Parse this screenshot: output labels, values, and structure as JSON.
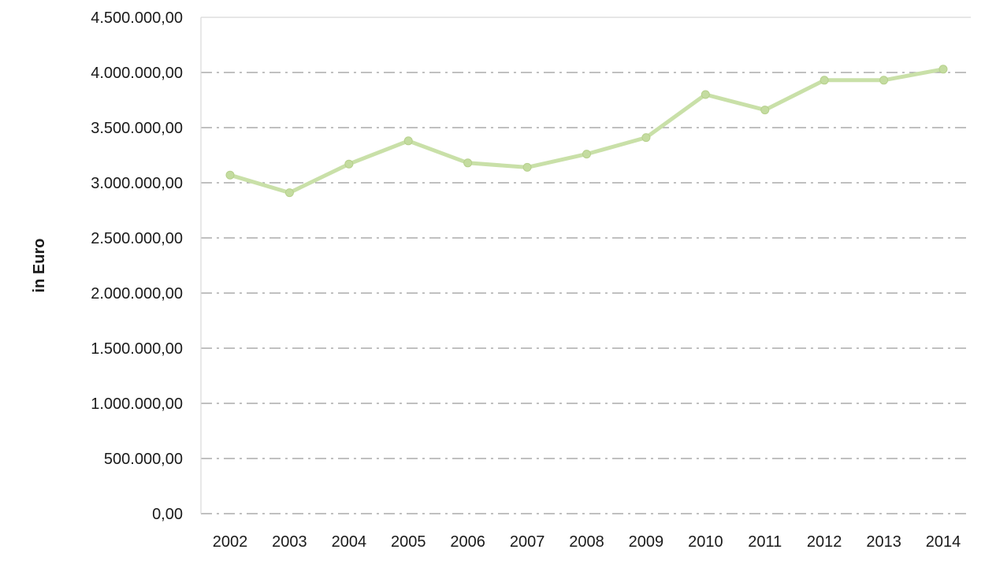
{
  "chart_data": {
    "type": "line",
    "title": "",
    "xlabel": "",
    "ylabel": "in Euro",
    "categories": [
      "2002",
      "2003",
      "2004",
      "2005",
      "2006",
      "2007",
      "2008",
      "2009",
      "2010",
      "2011",
      "2012",
      "2013",
      "2014"
    ],
    "series": [
      {
        "values": [
          3070000,
          2910000,
          3170000,
          3380000,
          3180000,
          3140000,
          3260000,
          3410000,
          3800000,
          3660000,
          3930000,
          3930000,
          4030000
        ]
      }
    ],
    "ylim": [
      0,
      4500000
    ],
    "ytick_values": [
      0,
      500000,
      1000000,
      1500000,
      2000000,
      2500000,
      3000000,
      3500000,
      4000000,
      4500000
    ],
    "ytick_labels": [
      "0,00",
      "500.000,00",
      "1.000.000,00",
      "1.500.000,00",
      "2.000.000,00",
      "2.500.000,00",
      "3.000.000,00",
      "3.500.000,00",
      "4.000.000,00",
      "4.500.000,00"
    ],
    "grid": true,
    "legend": "none",
    "colors": {
      "line": "#c9e0a8",
      "marker": "#c4dca0",
      "grid": "#7a7a7a",
      "frame": "#d8d8d8",
      "text": "#1a1a1a"
    }
  }
}
